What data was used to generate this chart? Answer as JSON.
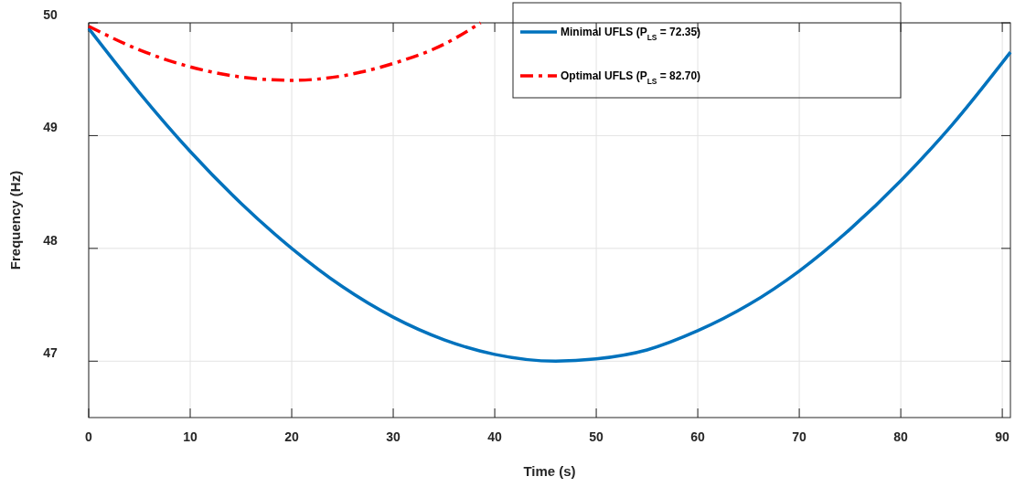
{
  "chart_data": {
    "type": "line",
    "xlabel": "Time (s)",
    "ylabel": "Frequency (Hz)",
    "xlim": [
      0,
      90.8
    ],
    "ylim": [
      46.5,
      50
    ],
    "xticks": [
      0,
      10,
      20,
      30,
      40,
      50,
      60,
      70,
      80,
      90
    ],
    "yticks": [
      47,
      48,
      49,
      50
    ],
    "grid": true,
    "legend": "top right",
    "series": [
      {
        "name": "Minimal UFLS (P$_{LS}$ = 72.35)",
        "color": "#0072bd",
        "line_style": "solid",
        "x": [
          0,
          5,
          10,
          15,
          20,
          25,
          30,
          35,
          40,
          46,
          50,
          55,
          60,
          65,
          70,
          75,
          80,
          85,
          90.8
        ],
        "values": [
          49.95,
          49.38,
          48.86,
          48.4,
          48.0,
          47.66,
          47.39,
          47.19,
          47.06,
          47.0,
          47.02,
          47.1,
          47.27,
          47.5,
          47.8,
          48.17,
          48.6,
          49.09,
          49.74
        ]
      },
      {
        "name": "Optimal UFLS (P$_{LS}$ = 82.70)",
        "color": "#ff0000",
        "line_style": "dashdot",
        "x": [
          0,
          5,
          10,
          15,
          20,
          25,
          30,
          35,
          38.6
        ],
        "values": [
          49.97,
          49.76,
          49.61,
          49.52,
          49.49,
          49.53,
          49.64,
          49.81,
          50.0
        ]
      }
    ]
  }
}
